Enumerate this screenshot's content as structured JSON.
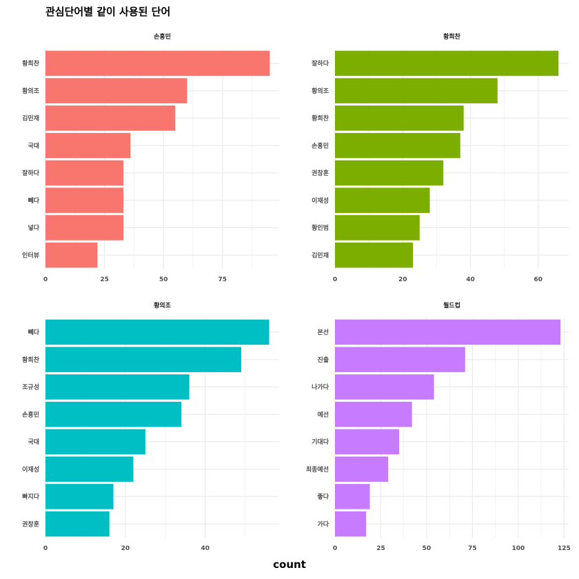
{
  "title": "관심단어별 같이 사용된 단어",
  "xlabel": "count",
  "chart_data": {
    "type": "bar",
    "title": "관심단어별 같이 사용된 단어",
    "xlabel": "count",
    "ylabel": "",
    "orientation": "horizontal",
    "grid": true,
    "legend": "none",
    "panels": [
      {
        "facet": "손흥민",
        "color": "#F8766D",
        "categories": [
          "황희찬",
          "황의조",
          "김민재",
          "국대",
          "잘하다",
          "뻬다",
          "넣다",
          "인터뷰"
        ],
        "values": [
          95,
          60,
          55,
          36,
          33,
          33,
          33,
          22
        ],
        "xlim": [
          0,
          99
        ],
        "ticks": [
          0,
          25,
          50,
          75
        ]
      },
      {
        "facet": "황희찬",
        "color": "#7CAE00",
        "categories": [
          "잘하다",
          "황의조",
          "황희찬",
          "손흥민",
          "권창훈",
          "이재성",
          "황인범",
          "김민재"
        ],
        "values": [
          66,
          48,
          38,
          37,
          32,
          28,
          25,
          23
        ],
        "xlim": [
          0,
          69
        ],
        "ticks": [
          0,
          20,
          40,
          60
        ]
      },
      {
        "facet": "황의조",
        "color": "#00BFC4",
        "categories": [
          "뻬다",
          "황희찬",
          "조규성",
          "손흥민",
          "국대",
          "이재성",
          "빠지다",
          "권창훈"
        ],
        "values": [
          56,
          49,
          36,
          34,
          25,
          22,
          17,
          16
        ],
        "xlim": [
          0,
          58.5
        ],
        "ticks": [
          0,
          20,
          40
        ]
      },
      {
        "facet": "월드컵",
        "color": "#C77CFF",
        "categories": [
          "본선",
          "진출",
          "나가다",
          "예선",
          "기대다",
          "최종예선",
          "좋다",
          "가다"
        ],
        "values": [
          123,
          71,
          54,
          42,
          35,
          29,
          19,
          17
        ],
        "xlim": [
          0,
          127.5
        ],
        "ticks": [
          0,
          25,
          50,
          75,
          100,
          125
        ]
      }
    ]
  }
}
